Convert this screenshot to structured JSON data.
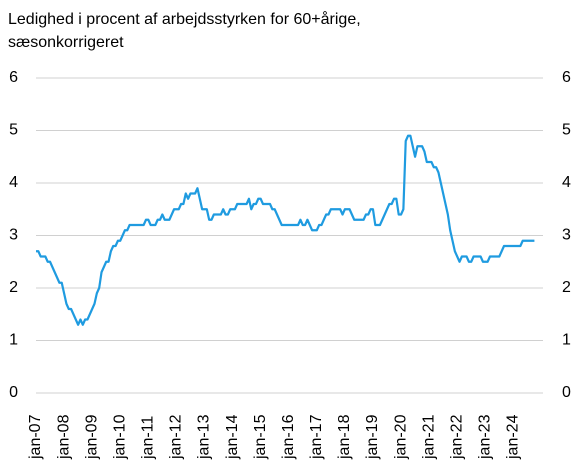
{
  "chart_data": {
    "type": "line",
    "title": [
      "Ledighed i procent af arbejdsstyrken for 60+årige,",
      "sæsonkorrigeret"
    ],
    "categories": [
      "jan-07",
      null,
      null,
      null,
      null,
      null,
      null,
      null,
      null,
      null,
      null,
      null,
      "jan-08",
      null,
      null,
      null,
      null,
      null,
      null,
      null,
      null,
      null,
      null,
      null,
      "jan-09",
      null,
      null,
      null,
      null,
      null,
      null,
      null,
      null,
      null,
      null,
      null,
      "jan-10",
      null,
      null,
      null,
      null,
      null,
      null,
      null,
      null,
      null,
      null,
      null,
      "jan-11",
      null,
      null,
      null,
      null,
      null,
      null,
      null,
      null,
      null,
      null,
      null,
      "jan-12",
      null,
      null,
      null,
      null,
      null,
      null,
      null,
      null,
      null,
      null,
      null,
      "jan-13",
      null,
      null,
      null,
      null,
      null,
      null,
      null,
      null,
      null,
      null,
      null,
      "jan-14",
      null,
      null,
      null,
      null,
      null,
      null,
      null,
      null,
      null,
      null,
      null,
      "jan-15",
      null,
      null,
      null,
      null,
      null,
      null,
      null,
      null,
      null,
      null,
      null,
      "jan-16",
      null,
      null,
      null,
      null,
      null,
      null,
      null,
      null,
      null,
      null,
      null,
      "jan-17",
      null,
      null,
      null,
      null,
      null,
      null,
      null,
      null,
      null,
      null,
      null,
      "jan-18",
      null,
      null,
      null,
      null,
      null,
      null,
      null,
      null,
      null,
      null,
      null,
      "jan-19",
      null,
      null,
      null,
      null,
      null,
      null,
      null,
      null,
      null,
      null,
      null,
      "jan-20",
      null,
      null,
      null,
      null,
      null,
      null,
      null,
      null,
      null,
      null,
      null,
      "jan-21",
      null,
      null,
      null,
      null,
      null,
      null,
      null,
      null,
      null,
      null,
      null,
      "jan-22",
      null,
      null,
      null,
      null,
      null,
      null,
      null,
      null,
      null,
      null,
      null,
      "jan-23",
      null,
      null,
      null,
      null,
      null,
      null,
      null,
      null,
      null,
      null,
      null,
      "jan-24",
      null,
      null,
      null,
      null,
      null,
      null,
      null,
      null,
      null
    ],
    "series": [
      {
        "color": "#1f9be0",
        "values": [
          2.7,
          2.7,
          2.6,
          2.6,
          2.6,
          2.5,
          2.5,
          2.4,
          2.3,
          2.2,
          2.1,
          2.1,
          1.9,
          1.7,
          1.6,
          1.6,
          1.5,
          1.4,
          1.3,
          1.4,
          1.3,
          1.4,
          1.4,
          1.5,
          1.6,
          1.7,
          1.9,
          2.0,
          2.3,
          2.4,
          2.5,
          2.5,
          2.7,
          2.8,
          2.8,
          2.9,
          2.9,
          3.0,
          3.1,
          3.1,
          3.2,
          3.2,
          3.2,
          3.2,
          3.2,
          3.2,
          3.2,
          3.3,
          3.3,
          3.2,
          3.2,
          3.2,
          3.3,
          3.3,
          3.4,
          3.3,
          3.3,
          3.3,
          3.4,
          3.5,
          3.5,
          3.5,
          3.6,
          3.6,
          3.8,
          3.7,
          3.8,
          3.8,
          3.8,
          3.9,
          3.7,
          3.5,
          3.5,
          3.5,
          3.3,
          3.3,
          3.4,
          3.4,
          3.4,
          3.4,
          3.5,
          3.4,
          3.4,
          3.5,
          3.5,
          3.5,
          3.6,
          3.6,
          3.6,
          3.6,
          3.6,
          3.7,
          3.5,
          3.6,
          3.6,
          3.7,
          3.7,
          3.6,
          3.6,
          3.6,
          3.6,
          3.5,
          3.5,
          3.4,
          3.3,
          3.2,
          3.2,
          3.2,
          3.2,
          3.2,
          3.2,
          3.2,
          3.2,
          3.3,
          3.2,
          3.2,
          3.3,
          3.2,
          3.1,
          3.1,
          3.1,
          3.2,
          3.2,
          3.3,
          3.4,
          3.4,
          3.5,
          3.5,
          3.5,
          3.5,
          3.5,
          3.4,
          3.5,
          3.5,
          3.5,
          3.4,
          3.3,
          3.3,
          3.3,
          3.3,
          3.3,
          3.4,
          3.4,
          3.5,
          3.5,
          3.2,
          3.2,
          3.2,
          3.3,
          3.4,
          3.5,
          3.6,
          3.6,
          3.7,
          3.7,
          3.4,
          3.4,
          3.5,
          4.8,
          4.9,
          4.9,
          4.7,
          4.5,
          4.7,
          4.7,
          4.7,
          4.6,
          4.4,
          4.4,
          4.4,
          4.3,
          4.3,
          4.2,
          4.0,
          3.8,
          3.6,
          3.4,
          3.1,
          2.9,
          2.7,
          2.6,
          2.5,
          2.6,
          2.6,
          2.6,
          2.5,
          2.5,
          2.6,
          2.6,
          2.6,
          2.6,
          2.5,
          2.5,
          2.5,
          2.6,
          2.6,
          2.6,
          2.6,
          2.6,
          2.7,
          2.8,
          2.8,
          2.8,
          2.8,
          2.8,
          2.8,
          2.8,
          2.8,
          2.9,
          2.9,
          2.9,
          2.9,
          2.9,
          2.9
        ]
      }
    ],
    "ylim": [
      0,
      6
    ],
    "yticks": [
      0,
      1,
      2,
      3,
      4,
      5,
      6
    ],
    "grid": true
  }
}
